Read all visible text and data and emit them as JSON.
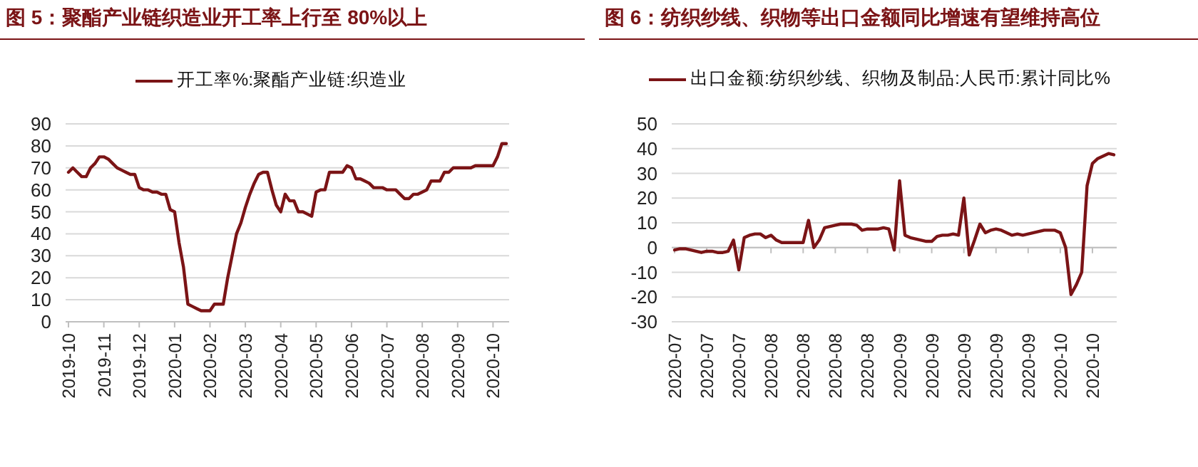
{
  "chart_data": [
    {
      "type": "line",
      "title": "图 5：聚酯产业链织造业开工率上行至 80%以上",
      "categories": [
        "2019-10",
        null,
        null,
        null,
        null,
        null,
        null,
        null,
        "2019-11",
        null,
        null,
        null,
        null,
        null,
        null,
        null,
        "2019-12",
        null,
        null,
        null,
        null,
        null,
        null,
        null,
        "2020-01",
        null,
        null,
        null,
        null,
        null,
        null,
        null,
        "2020-02",
        null,
        null,
        null,
        null,
        null,
        null,
        null,
        "2020-03",
        null,
        null,
        null,
        null,
        null,
        null,
        null,
        "2020-04",
        null,
        null,
        null,
        null,
        null,
        null,
        null,
        "2020-05",
        null,
        null,
        null,
        null,
        null,
        null,
        null,
        "2020-06",
        null,
        null,
        null,
        null,
        null,
        null,
        null,
        "2020-07",
        null,
        null,
        null,
        null,
        null,
        null,
        null,
        "2020-08",
        null,
        null,
        null,
        null,
        null,
        null,
        null,
        "2020-09",
        null,
        null,
        null,
        null,
        null,
        null,
        null,
        "2020-10",
        null,
        null,
        null
      ],
      "series": [
        {
          "name": "开工率%:聚酯产业链:织造业",
          "color": "#7b1416",
          "values": [
            68,
            70,
            68,
            66,
            66,
            70,
            72,
            75,
            75,
            74,
            72,
            70,
            69,
            68,
            67,
            67,
            61,
            60,
            60,
            59,
            59,
            58,
            58,
            51,
            50,
            36,
            25,
            8,
            7,
            6,
            5,
            5,
            5,
            8,
            8,
            8,
            20,
            30,
            40,
            45,
            52,
            58,
            63,
            67,
            68,
            68,
            60,
            53,
            50,
            58,
            55,
            55,
            50,
            50,
            49,
            48,
            59,
            60,
            60,
            68,
            68,
            68,
            68,
            71,
            70,
            65,
            65,
            64,
            63,
            61,
            61,
            61,
            60,
            60,
            60,
            58,
            56,
            56,
            58,
            58,
            59,
            60,
            64,
            64,
            64,
            68,
            68,
            70,
            70,
            70,
            70,
            70,
            71,
            71,
            71,
            71,
            71,
            75,
            81,
            81
          ]
        }
      ],
      "ylim": [
        0,
        90
      ],
      "yticks": [
        0,
        10,
        20,
        30,
        40,
        50,
        60,
        70,
        80,
        90
      ],
      "grid": "y",
      "legend": "top"
    },
    {
      "type": "line",
      "title": "图 6：纺织纱线、织物等出口金额同比增速有望维持高位",
      "categories": [
        "2020-07",
        null,
        null,
        null,
        null,
        null,
        "2020-07",
        null,
        null,
        null,
        null,
        null,
        "2020-07",
        null,
        null,
        null,
        null,
        null,
        "2020-08",
        null,
        null,
        null,
        null,
        null,
        "2020-08",
        null,
        null,
        null,
        null,
        null,
        "2020-08",
        null,
        null,
        null,
        null,
        null,
        "2020-08",
        null,
        null,
        null,
        null,
        null,
        "2020-09",
        null,
        null,
        null,
        null,
        null,
        "2020-09",
        null,
        null,
        null,
        null,
        null,
        "2020-09",
        null,
        null,
        null,
        null,
        null,
        "2020-09",
        null,
        null,
        null,
        null,
        null,
        "2020-09",
        null,
        null,
        null,
        null,
        null,
        "2020-10",
        null,
        null,
        null,
        null,
        null,
        "2020-10",
        null,
        null,
        null,
        null
      ],
      "series": [
        {
          "name": "出口金额:纺织纱线、织物及制品:人民币:累计同比%",
          "color": "#7b1416",
          "values": [
            -1,
            -0.5,
            -0.5,
            -1,
            -1.5,
            -2,
            -1.5,
            -1.5,
            -2,
            -2,
            -1.5,
            3,
            -9,
            4,
            5,
            5.5,
            5.5,
            4,
            5,
            3,
            2,
            2,
            2,
            2,
            2,
            11,
            0,
            3,
            8,
            8.5,
            9,
            9.5,
            9.5,
            9.5,
            9,
            7,
            7.5,
            7.5,
            7.5,
            8,
            7.5,
            -1,
            27,
            5,
            4,
            3.5,
            3,
            2.5,
            2.5,
            4.5,
            5,
            5,
            5.5,
            5,
            20,
            -3,
            3,
            9.5,
            6,
            7,
            7.5,
            7,
            6,
            5,
            5.5,
            5,
            5.5,
            6,
            6.5,
            7,
            7,
            7,
            6,
            0,
            -19,
            -15,
            -10,
            25,
            34,
            36,
            37,
            38,
            37.5
          ]
        }
      ],
      "ylim": [
        -30,
        50
      ],
      "yticks": [
        -30,
        -20,
        -10,
        0,
        10,
        20,
        30,
        40,
        50
      ],
      "grid": "y",
      "legend": "top"
    }
  ]
}
